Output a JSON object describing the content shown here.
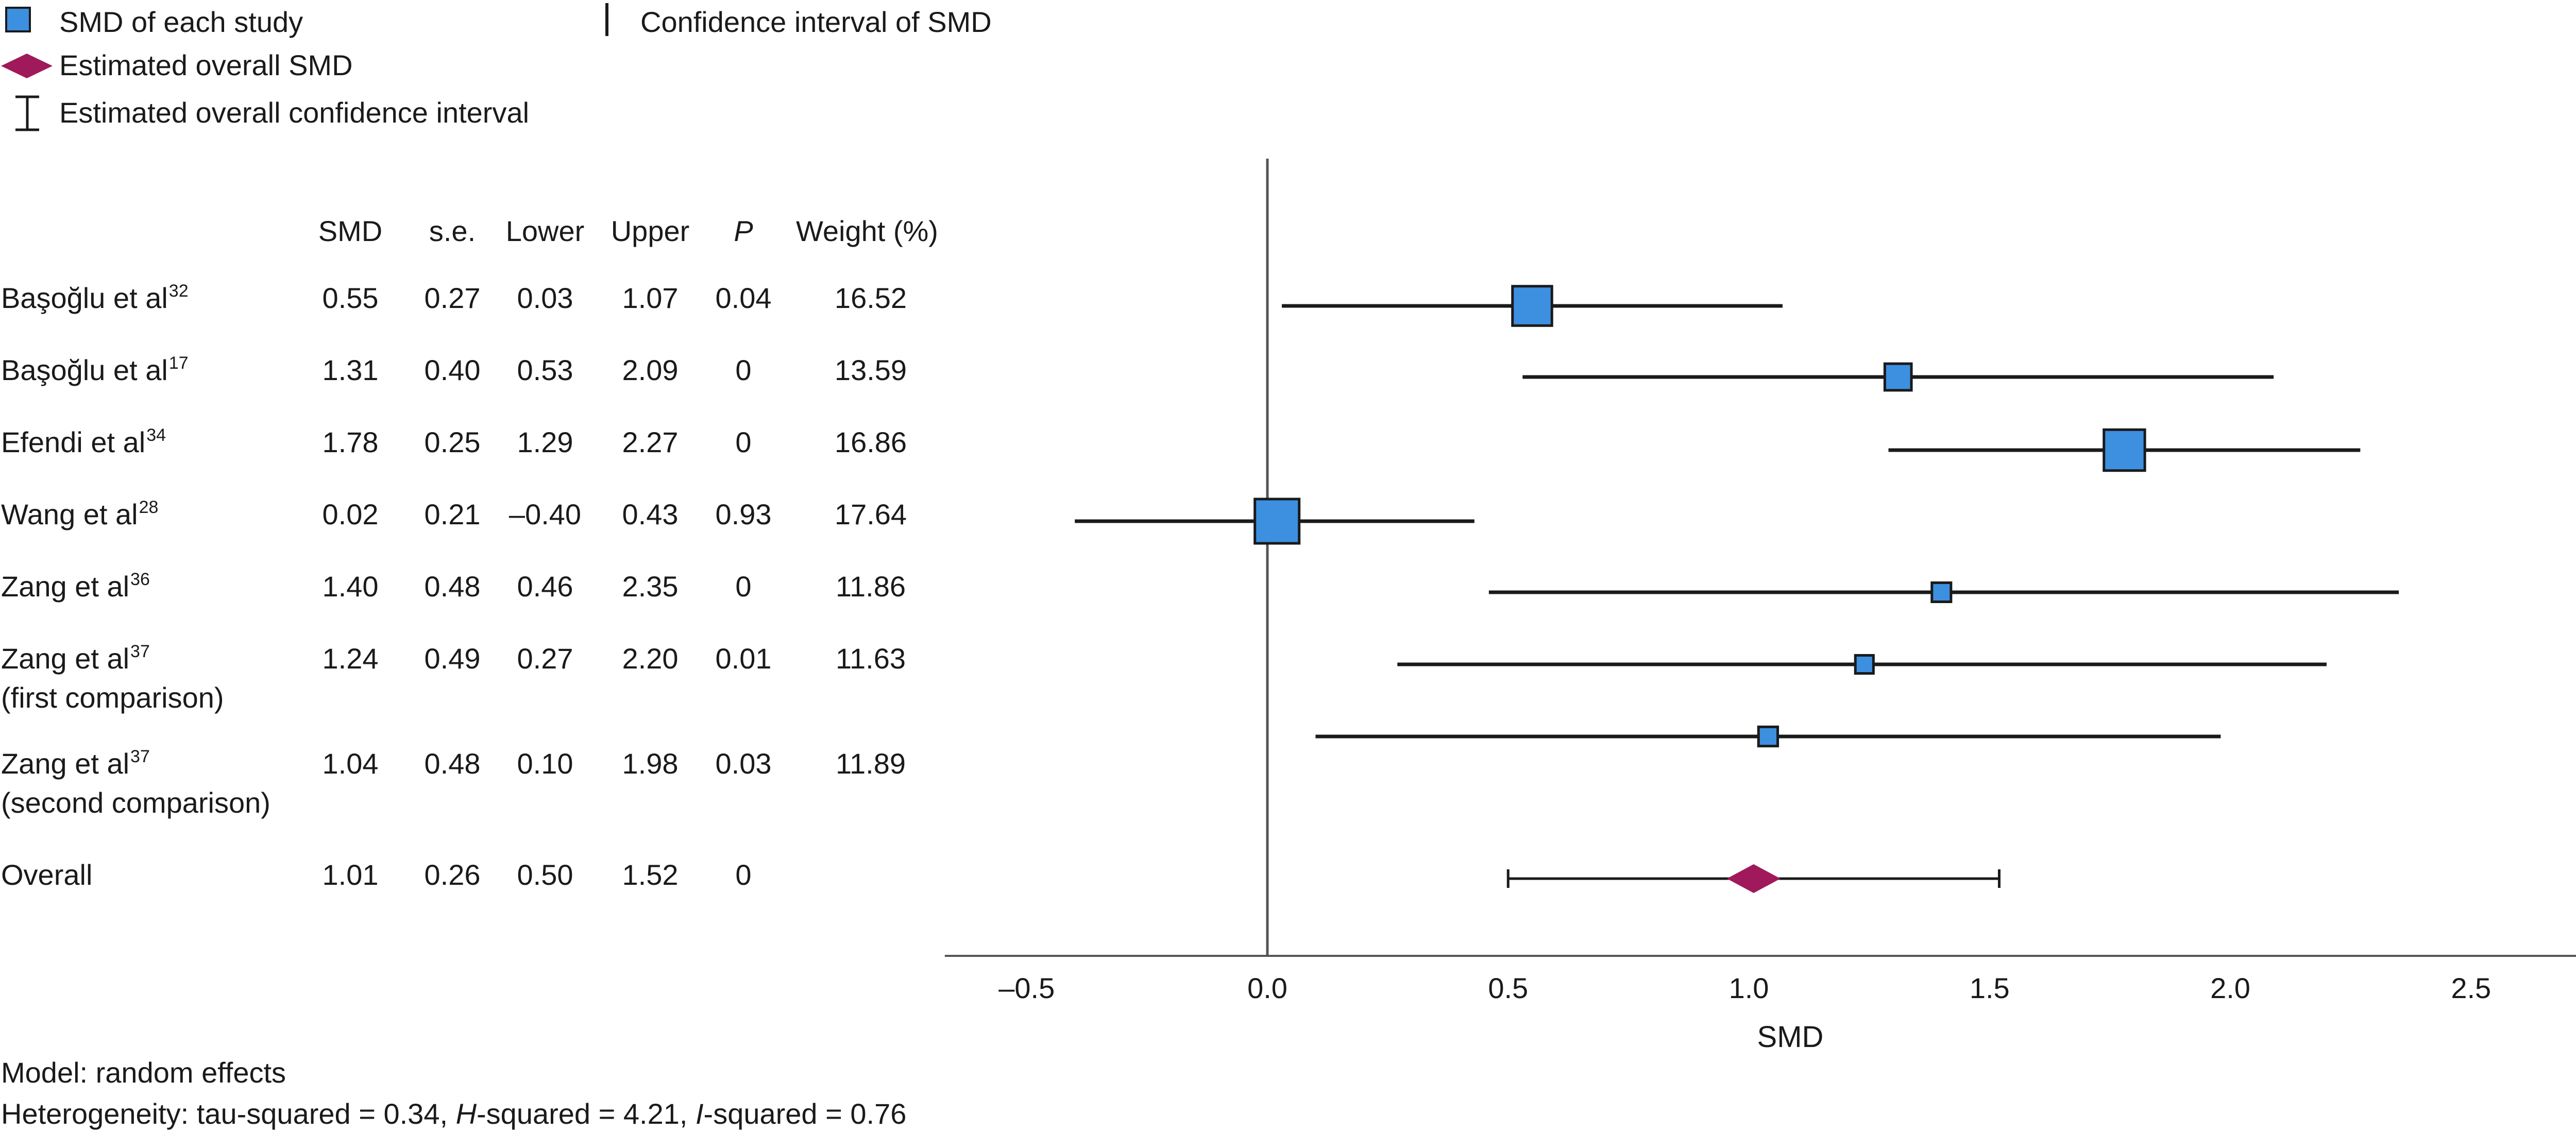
{
  "legend": {
    "study_smd": "SMD of each study",
    "ci": "Confidence interval of SMD",
    "overall_smd": "Estimated overall SMD",
    "overall_ci": "Estimated overall confidence interval"
  },
  "table": {
    "headers": [
      "SMD",
      "s.e.",
      "Lower",
      "Upper",
      "P",
      "Weight (%)"
    ],
    "rows": [
      {
        "name": "Başoğlu et al",
        "sup": "32",
        "name2": "",
        "smd": "0.55",
        "se": "0.27",
        "lower": "0.03",
        "upper": "1.07",
        "p": "0.04",
        "weight": "16.52"
      },
      {
        "name": "Başoğlu et al",
        "sup": "17",
        "name2": "",
        "smd": "1.31",
        "se": "0.40",
        "lower": "0.53",
        "upper": "2.09",
        "p": "0",
        "weight": "13.59"
      },
      {
        "name": "Efendi et al",
        "sup": "34",
        "name2": "",
        "smd": "1.78",
        "se": "0.25",
        "lower": "1.29",
        "upper": "2.27",
        "p": "0",
        "weight": "16.86"
      },
      {
        "name": "Wang et al",
        "sup": "28",
        "name2": "",
        "smd": "0.02",
        "se": "0.21",
        "lower": "–0.40",
        "upper": "0.43",
        "p": "0.93",
        "weight": "17.64"
      },
      {
        "name": "Zang et al",
        "sup": "36",
        "name2": "",
        "smd": "1.40",
        "se": "0.48",
        "lower": "0.46",
        "upper": "2.35",
        "p": "0",
        "weight": "11.86"
      },
      {
        "name": "Zang et al",
        "sup": "37",
        "name2": "(first comparison)",
        "smd": "1.24",
        "se": "0.49",
        "lower": "0.27",
        "upper": "2.20",
        "p": "0.01",
        "weight": "11.63"
      },
      {
        "name": "Zang et al",
        "sup": "37",
        "name2": "(second comparison)",
        "smd": "1.04",
        "se": "0.48",
        "lower": "0.10",
        "upper": "1.98",
        "p": "0.03",
        "weight": "11.89"
      }
    ],
    "overall": {
      "name": "Overall",
      "smd": "1.01",
      "se": "0.26",
      "lower": "0.50",
      "upper": "1.52",
      "p": "0",
      "weight": ""
    }
  },
  "chart_data": {
    "type": "scatter",
    "subtype": "forest-plot",
    "xlabel": "SMD",
    "xlim": [
      -0.67,
      2.85
    ],
    "xticks": [
      -0.5,
      0.0,
      0.5,
      1.0,
      1.5,
      2.0,
      2.5
    ],
    "xtick_labels": [
      "–0.5",
      "0.0",
      "0.5",
      "1.0",
      "1.5",
      "2.0",
      "2.5"
    ],
    "reference_line": 0,
    "studies": [
      {
        "smd": 0.55,
        "lower": 0.03,
        "upper": 1.07,
        "weight": 16.52
      },
      {
        "smd": 1.31,
        "lower": 0.53,
        "upper": 2.09,
        "weight": 13.59
      },
      {
        "smd": 1.78,
        "lower": 1.29,
        "upper": 2.27,
        "weight": 16.86
      },
      {
        "smd": 0.02,
        "lower": -0.4,
        "upper": 0.43,
        "weight": 17.64
      },
      {
        "smd": 1.4,
        "lower": 0.46,
        "upper": 2.35,
        "weight": 11.86
      },
      {
        "smd": 1.24,
        "lower": 0.27,
        "upper": 2.2,
        "weight": 11.63
      },
      {
        "smd": 1.04,
        "lower": 0.1,
        "upper": 1.98,
        "weight": 11.89
      }
    ],
    "overall": {
      "smd": 1.01,
      "lower": 0.5,
      "upper": 1.52
    },
    "colors": {
      "square": "#3d8fe0",
      "diamond": "#a0195a",
      "line": "#1a1a1a",
      "refline": "#555555"
    }
  },
  "footer": {
    "model": "Model: random effects",
    "het_prefix": "Heterogeneity: tau-squared = 0.34, ",
    "h_letter": "H",
    "h_rest": "-squared = 4.21, ",
    "i_letter": "I",
    "i_rest": "-squared = 0.76"
  }
}
